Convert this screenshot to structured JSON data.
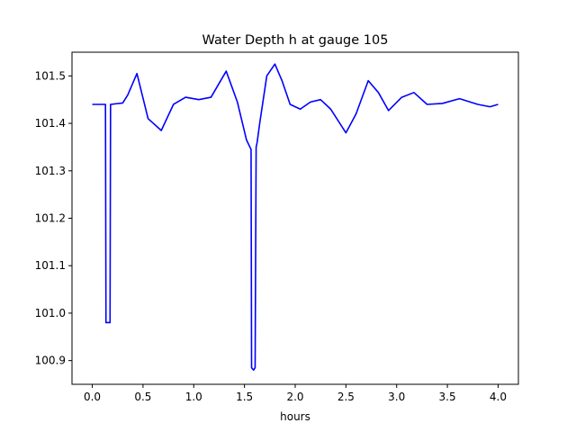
{
  "chart_data": {
    "type": "line",
    "title": "Water Depth h at gauge 105",
    "xlabel": "hours",
    "ylabel": "",
    "xlim": [
      -0.2,
      4.2
    ],
    "ylim": [
      100.85,
      101.55
    ],
    "xticks": [
      "0.0",
      "0.5",
      "1.0",
      "1.5",
      "2.0",
      "2.5",
      "3.0",
      "3.5",
      "4.0"
    ],
    "yticks": [
      "100.9",
      "101.0",
      "101.1",
      "101.2",
      "101.3",
      "101.4",
      "101.5"
    ],
    "grid": false,
    "legend": "none",
    "series": [
      {
        "color": "#0000ff",
        "x": [
          0.0,
          0.13,
          0.135,
          0.175,
          0.18,
          0.3,
          0.35,
          0.44,
          0.55,
          0.68,
          0.8,
          0.92,
          1.05,
          1.17,
          1.32,
          1.43,
          1.52,
          1.565,
          1.57,
          1.59,
          1.605,
          1.615,
          1.625,
          1.65,
          1.72,
          1.8,
          1.87,
          1.95,
          2.05,
          2.15,
          2.25,
          2.35,
          2.5,
          2.6,
          2.72,
          2.82,
          2.92,
          3.05,
          3.17,
          3.3,
          3.45,
          3.62,
          3.8,
          3.92,
          4.0
        ],
        "y": [
          101.44,
          101.44,
          100.98,
          100.98,
          101.44,
          101.443,
          101.46,
          101.505,
          101.41,
          101.385,
          101.44,
          101.455,
          101.45,
          101.455,
          101.51,
          101.445,
          101.365,
          101.345,
          100.885,
          100.88,
          100.885,
          101.35,
          101.36,
          101.4,
          101.5,
          101.525,
          101.49,
          101.44,
          101.43,
          101.445,
          101.45,
          101.43,
          101.38,
          101.42,
          101.49,
          101.465,
          101.427,
          101.455,
          101.465,
          101.44,
          101.442,
          101.452,
          101.44,
          101.435,
          101.44
        ]
      }
    ]
  }
}
